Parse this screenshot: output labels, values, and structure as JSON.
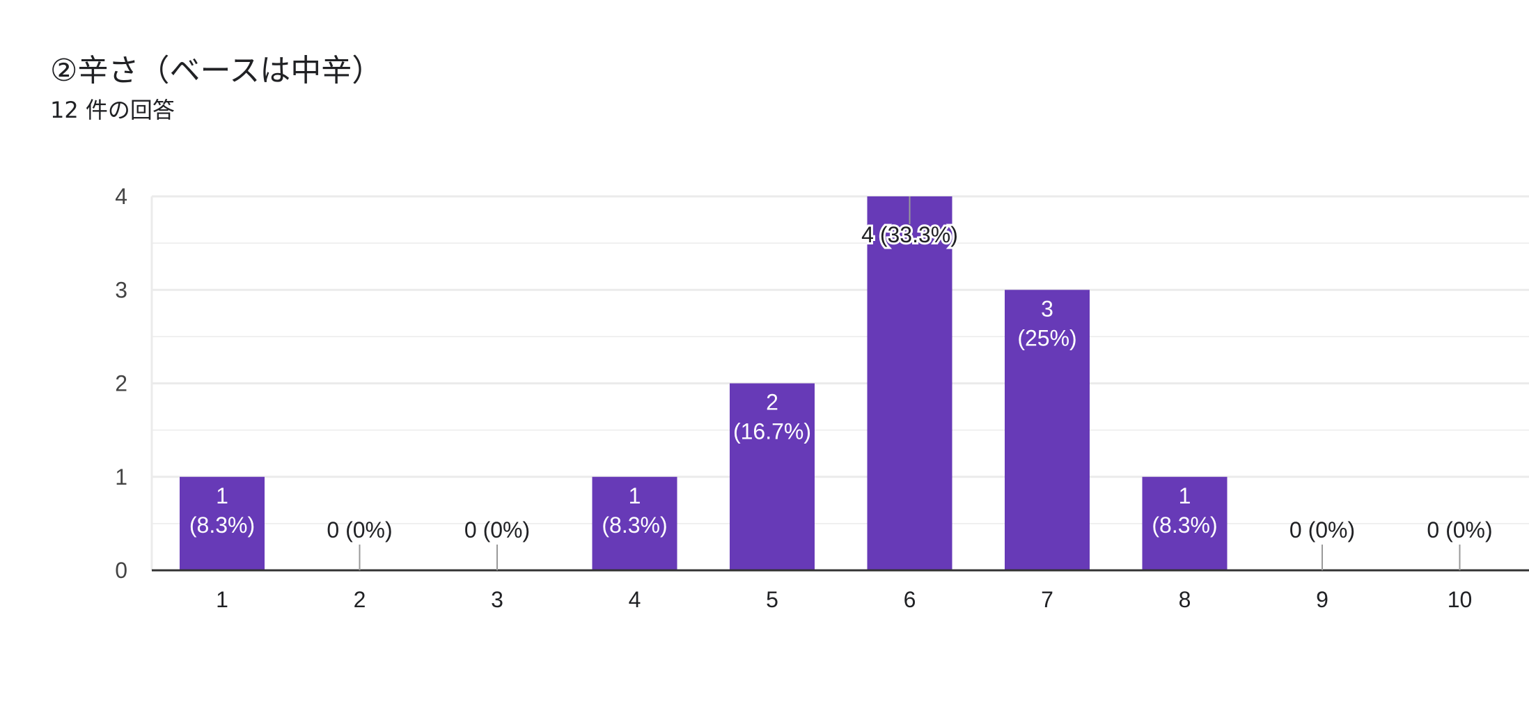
{
  "question": {
    "title": "②辛さ（ベースは中辛）",
    "response_count": "12 件の回答"
  },
  "colors": {
    "bar": "#673ab7",
    "gridline": "#ebebeb",
    "baseline": "#333333",
    "label_dark": "#202124",
    "label_light": "#ffffff",
    "tick_label": "#444444",
    "leader_line": "#999999"
  },
  "chart_data": {
    "type": "bar",
    "title": "",
    "xlabel": "",
    "ylabel": "",
    "categories": [
      "1",
      "2",
      "3",
      "4",
      "5",
      "6",
      "7",
      "8",
      "9",
      "10"
    ],
    "values": [
      1,
      0,
      0,
      1,
      2,
      4,
      3,
      1,
      0,
      0
    ],
    "data_labels": [
      "1 (8.3%)",
      "0 (0%)",
      "0 (0%)",
      "1 (8.3%)",
      "2 (16.7%)",
      "4 (33.3%)",
      "3 (25%)",
      "1 (8.3%)",
      "0 (0%)",
      "0 (0%)"
    ],
    "ylim": [
      0,
      4
    ],
    "yticks": [
      "0",
      "1",
      "2",
      "3",
      "4"
    ],
    "grid": true,
    "legend": "none"
  }
}
